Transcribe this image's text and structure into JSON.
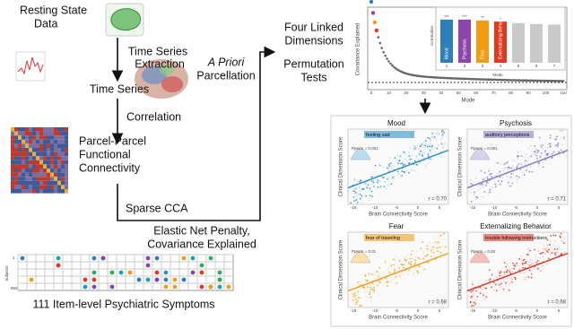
{
  "steps": {
    "resting_state": [
      "Resting State",
      "Data"
    ],
    "extraction": [
      "Time Series",
      "Extraction"
    ],
    "parcellation": [
      "A Priori",
      "Parcellation"
    ],
    "time_series": "Time Series",
    "correlation": "Correlation",
    "connectivity": [
      "Parcel-Parcel",
      "Functional",
      "Connectivity"
    ],
    "sparse_cca": "Sparse CCA",
    "elastic": [
      "Elastic Net Penalty,",
      "Covariance Explained"
    ],
    "symptoms": "111 Item-level Psychiatric Symptoms",
    "four_linked": [
      "Four Linked",
      "Dimensions"
    ],
    "permutation": [
      "Permutation",
      "Tests"
    ]
  },
  "symptom_grid": {
    "axis_label": "Subjects",
    "first": "1",
    "last": "863"
  },
  "scree": {
    "y_label": "Covariance Explained",
    "x_label": "Mode",
    "xticks": [
      "0",
      "10",
      "20",
      "30",
      "40",
      "50",
      "60",
      "70",
      "80",
      "90",
      "100",
      "110"
    ]
  },
  "bar_inset": {
    "y_label": "Correlation",
    "x_label": "Mode",
    "categories": [
      "1",
      "2",
      "3",
      "4",
      "5",
      "6",
      "7"
    ],
    "names": [
      "Mood",
      "Psychosis",
      "Fear",
      "Externalizing Behavior"
    ],
    "stars": [
      "***",
      "***",
      "**",
      "*"
    ],
    "values": [
      0.86,
      0.86,
      0.84,
      0.82,
      0.79,
      0.77,
      0.76
    ],
    "colors": [
      "#2c7fb8",
      "#8e44ad",
      "#f39c12",
      "#e03a1e",
      "#c9c9c9",
      "#c9c9c9",
      "#c9c9c9"
    ]
  },
  "panels": [
    {
      "title": "Mood",
      "item": "feeling sad",
      "p": "Pperm = 0.001",
      "r": "r = 0.70",
      "color": "#2f8fc9",
      "light": "#b9dcf0"
    },
    {
      "title": "Psychosis",
      "item": "auditory perceptions",
      "p": "Pperm = 0.001",
      "r": "r = 0.71",
      "color": "#8a7cc4",
      "light": "#d6d1ee"
    },
    {
      "title": "Fear",
      "item": "fear of traveling",
      "p": "Pperm = 0.01",
      "r": "r = 0.68",
      "color": "#f0a020",
      "light": "#fbe2a8"
    },
    {
      "title": "Externalizing Behavior",
      "item": "trouble following instructions",
      "p": "Pperm = 0.02",
      "r": "r = 0.68",
      "color": "#e0382a",
      "light": "#f7c0b5"
    }
  ],
  "panel_axes": {
    "x_label": "Brain Connectivity Score",
    "y_label": "Clinical Dimension Score",
    "xticks": [
      "-15",
      "-10",
      "-5",
      "0",
      "5"
    ]
  }
}
